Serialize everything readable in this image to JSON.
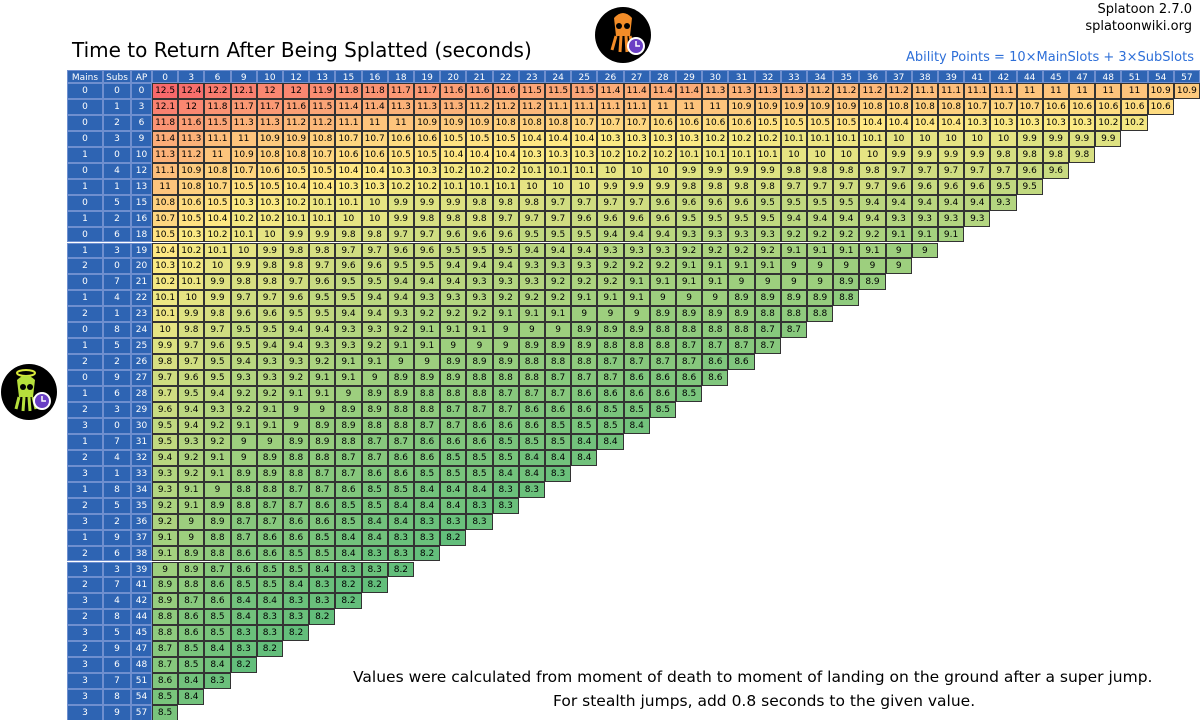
{
  "title": "Time to Return After Being Splatted (seconds)",
  "version": "Splatoon 2.7.0",
  "site": "splatoonwiki.org",
  "formula": "Ability Points = 10×MainSlots + 3×SubSlots",
  "headers": [
    "Mains",
    "Subs",
    "AP"
  ],
  "columns": [
    0,
    3,
    6,
    9,
    10,
    12,
    13,
    15,
    16,
    18,
    19,
    20,
    21,
    22,
    23,
    24,
    25,
    26,
    27,
    28,
    29,
    30,
    31,
    32,
    33,
    34,
    35,
    36,
    37,
    38,
    39,
    41,
    42,
    44,
    45,
    47,
    48,
    51,
    54,
    57
  ],
  "rows": [
    {
      "mains": 0,
      "subs": 0,
      "ap": 0,
      "values": [
        12.5,
        12.4,
        12.2,
        12.1,
        12,
        12,
        11.9,
        11.8,
        11.8,
        11.7,
        11.7,
        11.6,
        11.6,
        11.6,
        11.5,
        11.5,
        11.5,
        11.4,
        11.4,
        11.4,
        11.4,
        11.3,
        11.3,
        11.3,
        11.3,
        11.2,
        11.2,
        11.2,
        11.2,
        11.1,
        11.1,
        11.1,
        11.1,
        11,
        11,
        11,
        11,
        11,
        10.9,
        10.9
      ]
    },
    {
      "mains": 0,
      "subs": 1,
      "ap": 3,
      "values": [
        12.1,
        12,
        11.8,
        11.7,
        11.7,
        11.6,
        11.5,
        11.4,
        11.4,
        11.3,
        11.3,
        11.3,
        11.2,
        11.2,
        11.2,
        11.1,
        11.1,
        11.1,
        11.1,
        11,
        11,
        11,
        10.9,
        10.9,
        10.9,
        10.9,
        10.9,
        10.8,
        10.8,
        10.8,
        10.8,
        10.7,
        10.7,
        10.7,
        10.6,
        10.6,
        10.6,
        10.6,
        10.6
      ]
    },
    {
      "mains": 0,
      "subs": 2,
      "ap": 6,
      "values": [
        11.8,
        11.6,
        11.5,
        11.3,
        11.3,
        11.2,
        11.2,
        11.1,
        11,
        11,
        10.9,
        10.9,
        10.9,
        10.8,
        10.8,
        10.8,
        10.7,
        10.7,
        10.7,
        10.6,
        10.6,
        10.6,
        10.6,
        10.5,
        10.5,
        10.5,
        10.5,
        10.4,
        10.4,
        10.4,
        10.4,
        10.3,
        10.3,
        10.3,
        10.3,
        10.3,
        10.2,
        10.2
      ]
    },
    {
      "mains": 0,
      "subs": 3,
      "ap": 9,
      "values": [
        11.4,
        11.3,
        11.1,
        11,
        10.9,
        10.9,
        10.8,
        10.7,
        10.7,
        10.6,
        10.6,
        10.5,
        10.5,
        10.5,
        10.4,
        10.4,
        10.4,
        10.3,
        10.3,
        10.3,
        10.3,
        10.2,
        10.2,
        10.2,
        10.1,
        10.1,
        10.1,
        10.1,
        10,
        10,
        10,
        10,
        10,
        9.9,
        9.9,
        9.9,
        9.9
      ]
    },
    {
      "mains": 1,
      "subs": 0,
      "ap": 10,
      "values": [
        11.3,
        11.2,
        11,
        10.9,
        10.8,
        10.8,
        10.7,
        10.6,
        10.6,
        10.5,
        10.5,
        10.4,
        10.4,
        10.4,
        10.3,
        10.3,
        10.3,
        10.2,
        10.2,
        10.2,
        10.1,
        10.1,
        10.1,
        10.1,
        10,
        10,
        10,
        10,
        9.9,
        9.9,
        9.9,
        9.9,
        9.8,
        9.8,
        9.8,
        9.8
      ]
    },
    {
      "mains": 0,
      "subs": 4,
      "ap": 12,
      "values": [
        11.1,
        10.9,
        10.8,
        10.7,
        10.6,
        10.5,
        10.5,
        10.4,
        10.4,
        10.3,
        10.3,
        10.2,
        10.2,
        10.2,
        10.1,
        10.1,
        10.1,
        10,
        10,
        10,
        9.9,
        9.9,
        9.9,
        9.9,
        9.8,
        9.8,
        9.8,
        9.8,
        9.7,
        9.7,
        9.7,
        9.7,
        9.7,
        9.6,
        9.6
      ]
    },
    {
      "mains": 1,
      "subs": 1,
      "ap": 13,
      "values": [
        11,
        10.8,
        10.7,
        10.5,
        10.5,
        10.4,
        10.4,
        10.3,
        10.3,
        10.2,
        10.2,
        10.1,
        10.1,
        10.1,
        10,
        10,
        10,
        9.9,
        9.9,
        9.9,
        9.8,
        9.8,
        9.8,
        9.8,
        9.7,
        9.7,
        9.7,
        9.7,
        9.6,
        9.6,
        9.6,
        9.6,
        9.5,
        9.5
      ]
    },
    {
      "mains": 0,
      "subs": 5,
      "ap": 15,
      "values": [
        10.8,
        10.6,
        10.5,
        10.3,
        10.3,
        10.2,
        10.1,
        10.1,
        10,
        9.9,
        9.9,
        9.9,
        9.8,
        9.8,
        9.8,
        9.7,
        9.7,
        9.7,
        9.7,
        9.6,
        9.6,
        9.6,
        9.6,
        9.5,
        9.5,
        9.5,
        9.5,
        9.4,
        9.4,
        9.4,
        9.4,
        9.4,
        9.3
      ]
    },
    {
      "mains": 1,
      "subs": 2,
      "ap": 16,
      "values": [
        10.7,
        10.5,
        10.4,
        10.2,
        10.2,
        10.1,
        10.1,
        10,
        10,
        9.9,
        9.8,
        9.8,
        9.8,
        9.7,
        9.7,
        9.7,
        9.6,
        9.6,
        9.6,
        9.6,
        9.5,
        9.5,
        9.5,
        9.5,
        9.4,
        9.4,
        9.4,
        9.4,
        9.3,
        9.3,
        9.3,
        9.3
      ]
    },
    {
      "mains": 0,
      "subs": 6,
      "ap": 18,
      "values": [
        10.5,
        10.3,
        10.2,
        10.1,
        10,
        9.9,
        9.9,
        9.8,
        9.8,
        9.7,
        9.7,
        9.6,
        9.6,
        9.6,
        9.5,
        9.5,
        9.5,
        9.4,
        9.4,
        9.4,
        9.3,
        9.3,
        9.3,
        9.3,
        9.2,
        9.2,
        9.2,
        9.2,
        9.1,
        9.1,
        9.1
      ]
    },
    {
      "mains": 1,
      "subs": 3,
      "ap": 19,
      "values": [
        10.4,
        10.2,
        10.1,
        10,
        9.9,
        9.8,
        9.8,
        9.7,
        9.7,
        9.6,
        9.6,
        9.5,
        9.5,
        9.5,
        9.4,
        9.4,
        9.4,
        9.3,
        9.3,
        9.3,
        9.2,
        9.2,
        9.2,
        9.2,
        9.1,
        9.1,
        9.1,
        9.1,
        9,
        9
      ]
    },
    {
      "mains": 2,
      "subs": 0,
      "ap": 20,
      "values": [
        10.3,
        10.2,
        10,
        9.9,
        9.8,
        9.8,
        9.7,
        9.6,
        9.6,
        9.5,
        9.5,
        9.4,
        9.4,
        9.4,
        9.3,
        9.3,
        9.3,
        9.2,
        9.2,
        9.2,
        9.1,
        9.1,
        9.1,
        9.1,
        9,
        9,
        9,
        9,
        9
      ]
    },
    {
      "mains": 0,
      "subs": 7,
      "ap": 21,
      "values": [
        10.2,
        10.1,
        9.9,
        9.8,
        9.8,
        9.7,
        9.6,
        9.5,
        9.5,
        9.4,
        9.4,
        9.4,
        9.3,
        9.3,
        9.3,
        9.2,
        9.2,
        9.2,
        9.1,
        9.1,
        9.1,
        9.1,
        9,
        9,
        9,
        9,
        8.9,
        8.9
      ]
    },
    {
      "mains": 1,
      "subs": 4,
      "ap": 22,
      "values": [
        10.1,
        10,
        9.9,
        9.7,
        9.7,
        9.6,
        9.5,
        9.5,
        9.4,
        9.4,
        9.3,
        9.3,
        9.3,
        9.2,
        9.2,
        9.2,
        9.1,
        9.1,
        9.1,
        9,
        9,
        9,
        8.9,
        8.9,
        8.9,
        8.9,
        8.8
      ]
    },
    {
      "mains": 2,
      "subs": 1,
      "ap": 23,
      "values": [
        10.1,
        9.9,
        9.8,
        9.6,
        9.6,
        9.5,
        9.5,
        9.4,
        9.4,
        9.3,
        9.2,
        9.2,
        9.2,
        9.1,
        9.1,
        9.1,
        9,
        9,
        9,
        8.9,
        8.9,
        8.9,
        8.9,
        8.8,
        8.8,
        8.8
      ]
    },
    {
      "mains": 0,
      "subs": 8,
      "ap": 24,
      "values": [
        10,
        9.8,
        9.7,
        9.5,
        9.5,
        9.4,
        9.4,
        9.3,
        9.3,
        9.2,
        9.1,
        9.1,
        9.1,
        9,
        9,
        9,
        8.9,
        8.9,
        8.9,
        8.8,
        8.8,
        8.8,
        8.8,
        8.7,
        8.7
      ]
    },
    {
      "mains": 1,
      "subs": 5,
      "ap": 25,
      "values": [
        9.9,
        9.7,
        9.6,
        9.5,
        9.4,
        9.4,
        9.3,
        9.3,
        9.2,
        9.1,
        9.1,
        9,
        9,
        9,
        8.9,
        8.9,
        8.9,
        8.8,
        8.8,
        8.8,
        8.7,
        8.7,
        8.7,
        8.7
      ]
    },
    {
      "mains": 2,
      "subs": 2,
      "ap": 26,
      "values": [
        9.8,
        9.7,
        9.5,
        9.4,
        9.3,
        9.3,
        9.2,
        9.1,
        9.1,
        9,
        9,
        8.9,
        8.9,
        8.9,
        8.8,
        8.8,
        8.8,
        8.7,
        8.7,
        8.7,
        8.7,
        8.6,
        8.6
      ]
    },
    {
      "mains": 0,
      "subs": 9,
      "ap": 27,
      "values": [
        9.7,
        9.6,
        9.5,
        9.3,
        9.3,
        9.2,
        9.1,
        9.1,
        9,
        8.9,
        8.9,
        8.9,
        8.8,
        8.8,
        8.8,
        8.7,
        8.7,
        8.7,
        8.6,
        8.6,
        8.6,
        8.6
      ]
    },
    {
      "mains": 1,
      "subs": 6,
      "ap": 28,
      "values": [
        9.7,
        9.5,
        9.4,
        9.2,
        9.2,
        9.1,
        9.1,
        9,
        8.9,
        8.9,
        8.8,
        8.8,
        8.8,
        8.7,
        8.7,
        8.7,
        8.6,
        8.6,
        8.6,
        8.6,
        8.5
      ]
    },
    {
      "mains": 2,
      "subs": 3,
      "ap": 29,
      "values": [
        9.6,
        9.4,
        9.3,
        9.2,
        9.1,
        9,
        9,
        8.9,
        8.9,
        8.8,
        8.8,
        8.7,
        8.7,
        8.7,
        8.6,
        8.6,
        8.6,
        8.5,
        8.5,
        8.5
      ]
    },
    {
      "mains": 3,
      "subs": 0,
      "ap": 30,
      "values": [
        9.5,
        9.4,
        9.2,
        9.1,
        9.1,
        9,
        8.9,
        8.9,
        8.8,
        8.8,
        8.7,
        8.7,
        8.6,
        8.6,
        8.6,
        8.5,
        8.5,
        8.5,
        8.4
      ]
    },
    {
      "mains": 1,
      "subs": 7,
      "ap": 31,
      "values": [
        9.5,
        9.3,
        9.2,
        9,
        9,
        8.9,
        8.9,
        8.8,
        8.7,
        8.7,
        8.6,
        8.6,
        8.6,
        8.5,
        8.5,
        8.5,
        8.4,
        8.4
      ]
    },
    {
      "mains": 2,
      "subs": 4,
      "ap": 32,
      "values": [
        9.4,
        9.2,
        9.1,
        9,
        8.9,
        8.8,
        8.8,
        8.7,
        8.7,
        8.6,
        8.6,
        8.5,
        8.5,
        8.5,
        8.4,
        8.4,
        8.4
      ]
    },
    {
      "mains": 3,
      "subs": 1,
      "ap": 33,
      "values": [
        9.3,
        9.2,
        9.1,
        8.9,
        8.9,
        8.8,
        8.7,
        8.7,
        8.6,
        8.6,
        8.5,
        8.5,
        8.5,
        8.4,
        8.4,
        8.3
      ]
    },
    {
      "mains": 1,
      "subs": 8,
      "ap": 34,
      "values": [
        9.3,
        9.1,
        9,
        8.8,
        8.8,
        8.7,
        8.7,
        8.6,
        8.5,
        8.5,
        8.4,
        8.4,
        8.4,
        8.3,
        8.3
      ]
    },
    {
      "mains": 2,
      "subs": 5,
      "ap": 35,
      "values": [
        9.2,
        9.1,
        8.9,
        8.8,
        8.7,
        8.7,
        8.6,
        8.5,
        8.5,
        8.4,
        8.4,
        8.4,
        8.3,
        8.3
      ]
    },
    {
      "mains": 3,
      "subs": 2,
      "ap": 36,
      "values": [
        9.2,
        9,
        8.9,
        8.7,
        8.7,
        8.6,
        8.6,
        8.5,
        8.4,
        8.4,
        8.3,
        8.3,
        8.3
      ]
    },
    {
      "mains": 1,
      "subs": 9,
      "ap": 37,
      "values": [
        9.1,
        9,
        8.8,
        8.7,
        8.6,
        8.6,
        8.5,
        8.4,
        8.4,
        8.3,
        8.3,
        8.2
      ]
    },
    {
      "mains": 2,
      "subs": 6,
      "ap": 38,
      "values": [
        9.1,
        8.9,
        8.8,
        8.6,
        8.6,
        8.5,
        8.5,
        8.4,
        8.3,
        8.3,
        8.2
      ]
    },
    {
      "mains": 3,
      "subs": 3,
      "ap": 39,
      "values": [
        9,
        8.9,
        8.7,
        8.6,
        8.5,
        8.5,
        8.4,
        8.3,
        8.3,
        8.2
      ]
    },
    {
      "mains": 2,
      "subs": 7,
      "ap": 41,
      "values": [
        8.9,
        8.8,
        8.6,
        8.5,
        8.5,
        8.4,
        8.3,
        8.2,
        8.2
      ]
    },
    {
      "mains": 3,
      "subs": 4,
      "ap": 42,
      "values": [
        8.9,
        8.7,
        8.6,
        8.4,
        8.4,
        8.3,
        8.3,
        8.2
      ]
    },
    {
      "mains": 2,
      "subs": 8,
      "ap": 44,
      "values": [
        8.8,
        8.6,
        8.5,
        8.4,
        8.3,
        8.3,
        8.2
      ]
    },
    {
      "mains": 3,
      "subs": 5,
      "ap": 45,
      "values": [
        8.8,
        8.6,
        8.5,
        8.3,
        8.3,
        8.2
      ]
    },
    {
      "mains": 2,
      "subs": 9,
      "ap": 47,
      "values": [
        8.7,
        8.5,
        8.4,
        8.3,
        8.2
      ]
    },
    {
      "mains": 3,
      "subs": 6,
      "ap": 48,
      "values": [
        8.7,
        8.5,
        8.4,
        8.2
      ]
    },
    {
      "mains": 3,
      "subs": 7,
      "ap": 51,
      "values": [
        8.6,
        8.4,
        8.3
      ]
    },
    {
      "mains": 3,
      "subs": 8,
      "ap": 54,
      "values": [
        8.5,
        8.4
      ]
    },
    {
      "mains": 3,
      "subs": 9,
      "ap": 57,
      "values": [
        8.5
      ]
    }
  ],
  "notes": [
    "Values were calculated from moment of death to moment of landing on the ground after a super jump.",
    "For stealth jumps, add 0.8 seconds to the given value."
  ]
}
